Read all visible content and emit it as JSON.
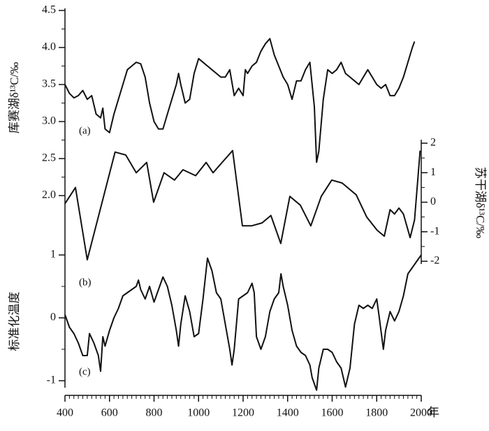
{
  "chart_data": [
    {
      "type": "line",
      "panel_label": "(a)",
      "ylabel": "库赛湖δ¹³C/‰",
      "yaxis": "left",
      "color": "#111111",
      "ylim": [
        2.0,
        4.5
      ],
      "yticks": [
        {
          "value": 2,
          "label": "2.0"
        },
        2.5,
        {
          "value": 3,
          "label": "3.0"
        },
        3.5,
        {
          "value": 4,
          "label": "4.0"
        },
        4.5
      ],
      "x": [
        400,
        420,
        440,
        460,
        480,
        500,
        520,
        540,
        560,
        570,
        580,
        600,
        620,
        640,
        660,
        680,
        700,
        720,
        740,
        760,
        780,
        800,
        820,
        840,
        860,
        880,
        900,
        910,
        920,
        940,
        960,
        980,
        1000,
        1020,
        1040,
        1060,
        1080,
        1100,
        1120,
        1140,
        1160,
        1180,
        1200,
        1210,
        1220,
        1240,
        1260,
        1280,
        1300,
        1320,
        1340,
        1360,
        1380,
        1400,
        1420,
        1440,
        1460,
        1480,
        1500,
        1510,
        1520,
        1530,
        1540,
        1560,
        1580,
        1600,
        1620,
        1640,
        1660,
        1680,
        1700,
        1720,
        1740,
        1760,
        1780,
        1800,
        1820,
        1840,
        1860,
        1880,
        1900,
        1920,
        1940,
        1960,
        1970
      ],
      "values": [
        3.5,
        3.38,
        3.32,
        3.35,
        3.42,
        3.3,
        3.35,
        3.1,
        3.05,
        3.18,
        2.9,
        2.85,
        3.1,
        3.3,
        3.5,
        3.7,
        3.75,
        3.8,
        3.78,
        3.6,
        3.25,
        3.0,
        2.9,
        2.9,
        3.1,
        3.3,
        3.5,
        3.65,
        3.5,
        3.25,
        3.3,
        3.65,
        3.85,
        3.8,
        3.75,
        3.7,
        3.65,
        3.6,
        3.6,
        3.7,
        3.35,
        3.45,
        3.35,
        3.7,
        3.65,
        3.75,
        3.8,
        3.95,
        4.05,
        4.12,
        3.9,
        3.75,
        3.6,
        3.5,
        3.3,
        3.55,
        3.55,
        3.7,
        3.8,
        3.5,
        3.2,
        2.45,
        2.6,
        3.3,
        3.7,
        3.65,
        3.7,
        3.8,
        3.65,
        3.6,
        3.55,
        3.5,
        3.6,
        3.7,
        3.6,
        3.5,
        3.45,
        3.5,
        3.35,
        3.35,
        3.45,
        3.6,
        3.8,
        4.0,
        4.08
      ]
    },
    {
      "type": "line",
      "panel_label": "(b)",
      "ylabel": "苏干湖δ¹³C/‰",
      "yaxis": "right",
      "color": "#111111",
      "ylim": [
        -2,
        2
      ],
      "yticks": [
        -2,
        -1,
        0,
        1,
        2
      ],
      "x": [
        400,
        447,
        500,
        625,
        673,
        720,
        767,
        798,
        845,
        892,
        930,
        987,
        1034,
        1065,
        1106,
        1153,
        1197,
        1238,
        1285,
        1325,
        1369,
        1410,
        1457,
        1504,
        1551,
        1598,
        1645,
        1708,
        1755,
        1802,
        1834,
        1860,
        1880,
        1900,
        1920,
        1950,
        1970,
        1995
      ],
      "values": [
        -0.05,
        0.5,
        -1.95,
        1.7,
        1.6,
        1.0,
        1.35,
        0,
        1.0,
        0.75,
        1.1,
        0.9,
        1.35,
        1.0,
        1.35,
        1.75,
        -0.8,
        -0.8,
        -0.7,
        -0.45,
        -1.4,
        0.2,
        -0.1,
        -0.8,
        0.2,
        0.75,
        0.65,
        0.25,
        -0.5,
        -0.95,
        -1.15,
        -0.25,
        -0.4,
        -0.2,
        -0.4,
        -1.2,
        -0.6,
        1.75
      ]
    },
    {
      "type": "line",
      "panel_label": "(c)",
      "ylabel": "标准化温度",
      "yaxis": "left",
      "color": "#111111",
      "ylim": [
        -1,
        1
      ],
      "yticks": [
        -1,
        0,
        1
      ],
      "xlabel": "年",
      "xlim": [
        400,
        2000
      ],
      "xticks": [
        400,
        600,
        800,
        1000,
        1200,
        1400,
        1600,
        1800,
        2000
      ],
      "x": [
        400,
        420,
        440,
        460,
        480,
        500,
        510,
        530,
        550,
        560,
        570,
        580,
        600,
        620,
        640,
        660,
        680,
        700,
        720,
        730,
        740,
        760,
        780,
        800,
        820,
        840,
        860,
        880,
        900,
        910,
        920,
        940,
        960,
        980,
        1000,
        1020,
        1040,
        1060,
        1080,
        1100,
        1120,
        1140,
        1150,
        1160,
        1180,
        1200,
        1220,
        1240,
        1250,
        1260,
        1280,
        1300,
        1320,
        1340,
        1360,
        1370,
        1380,
        1400,
        1420,
        1440,
        1460,
        1480,
        1500,
        1510,
        1530,
        1540,
        1560,
        1580,
        1600,
        1620,
        1640,
        1660,
        1680,
        1700,
        1720,
        1740,
        1760,
        1780,
        1800,
        1810,
        1830,
        1840,
        1860,
        1880,
        1900,
        1920,
        1940,
        1960,
        1980,
        2000
      ],
      "values": [
        0.05,
        -0.15,
        -0.25,
        -0.4,
        -0.6,
        -0.6,
        -0.25,
        -0.4,
        -0.6,
        -0.85,
        -0.3,
        -0.45,
        -0.2,
        0.0,
        0.15,
        0.35,
        0.4,
        0.45,
        0.5,
        0.6,
        0.45,
        0.3,
        0.5,
        0.25,
        0.45,
        0.65,
        0.5,
        0.2,
        -0.2,
        -0.45,
        -0.1,
        0.35,
        0.1,
        -0.3,
        -0.25,
        0.3,
        0.95,
        0.75,
        0.4,
        0.3,
        -0.1,
        -0.5,
        -0.75,
        -0.5,
        0.3,
        0.35,
        0.4,
        0.55,
        0.4,
        -0.3,
        -0.5,
        -0.3,
        0.1,
        0.3,
        0.4,
        0.7,
        0.5,
        0.2,
        -0.2,
        -0.45,
        -0.55,
        -0.6,
        -0.75,
        -0.95,
        -1.15,
        -0.8,
        -0.5,
        -0.5,
        -0.55,
        -0.7,
        -0.8,
        -1.1,
        -0.8,
        -0.1,
        0.2,
        0.15,
        0.2,
        0.15,
        0.3,
        0.05,
        -0.5,
        -0.2,
        0.1,
        -0.05,
        0.1,
        0.35,
        0.7,
        0.8,
        0.9,
        1.0
      ]
    }
  ]
}
